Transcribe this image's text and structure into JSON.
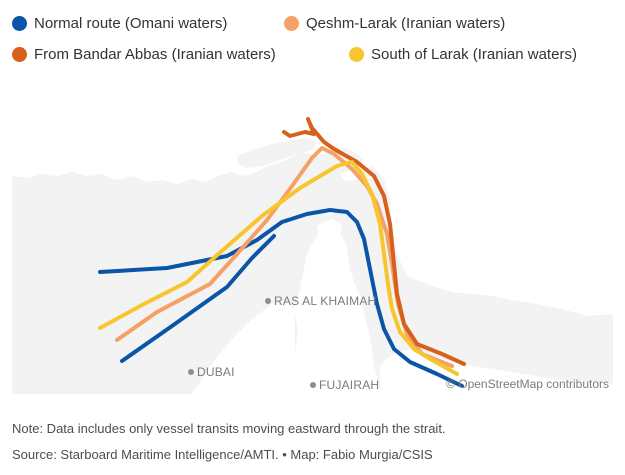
{
  "legend": [
    {
      "label": "Normal route (Omani waters)",
      "color": "#0b55a8"
    },
    {
      "label": "Qeshm-Larak (Iranian waters)",
      "color": "#f5a066"
    },
    {
      "label": "From Bandar Abbas (Iranian waters)",
      "color": "#d6601c"
    },
    {
      "label": "South of Larak (Iranian waters)",
      "color": "#f7c52d"
    }
  ],
  "map": {
    "labels": {
      "ras_al_khaimah": "RAS AL KHAIMAH",
      "dubai": "DUBAI",
      "fujairah": "FUJAIRAH"
    },
    "credit": "© OpenStreetMap contributors",
    "land_color": "#ffffff",
    "water_color": "#f3f3f3"
  },
  "footer": {
    "note": "Note: Data includes only vessel transits moving eastward through the strait.",
    "source": "Source: Starboard Maritime Intelligence/AMTI. • Map: Fabio Murgia/CSIS"
  }
}
